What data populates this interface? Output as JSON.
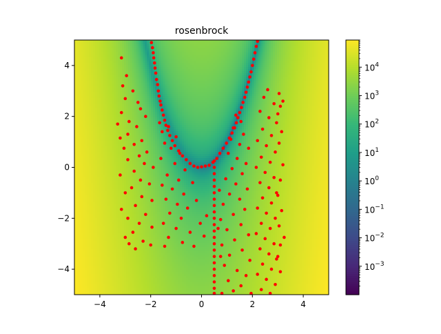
{
  "chart_data": {
    "type": "scatter",
    "title": "rosenbrock",
    "xlabel": "",
    "ylabel": "",
    "xlim": [
      -5,
      5
    ],
    "ylim": [
      -5,
      5
    ],
    "xticks": [
      -4,
      -2,
      0,
      2,
      4
    ],
    "yticks": [
      -4,
      -2,
      0,
      2,
      4
    ],
    "xtick_labels": [
      "−4",
      "−2",
      "0",
      "2",
      "4"
    ],
    "ytick_labels": [
      "−4",
      "−2",
      "0",
      "2",
      "4"
    ],
    "background": {
      "type": "heatmap",
      "function": "rosenbrock: (1 - x)^2 + 100 (y - x^2)^2",
      "colormap": "viridis",
      "color_scale": "log"
    },
    "colorbar": {
      "scale": "log",
      "range": [
        0.0001,
        90000
      ],
      "major_ticks": [
        0.001,
        0.01,
        0.1,
        1,
        10,
        100,
        1000,
        10000
      ],
      "base_labels": [
        "10",
        "10",
        "10",
        "10",
        "10",
        "10",
        "10",
        "10"
      ],
      "exponent_labels": [
        "−3",
        "−2",
        "−1",
        "0",
        "1",
        "2",
        "3",
        "4"
      ]
    },
    "series": [
      {
        "marker_color": "#ff0000",
        "points": [
          [
            -1.97,
            4.9
          ],
          [
            -1.93,
            4.7
          ],
          [
            -1.9,
            4.5
          ],
          [
            -1.88,
            4.3
          ],
          [
            -1.85,
            4.1
          ],
          [
            -1.83,
            3.9
          ],
          [
            -1.8,
            3.7
          ],
          [
            -1.77,
            3.45
          ],
          [
            -1.73,
            3.25
          ],
          [
            -1.7,
            3.0
          ],
          [
            -1.67,
            2.8
          ],
          [
            -1.63,
            2.6
          ],
          [
            -1.6,
            2.45
          ],
          [
            -1.55,
            2.25
          ],
          [
            -1.5,
            2.05
          ],
          [
            -1.45,
            1.85
          ],
          [
            -1.4,
            1.65
          ],
          [
            -1.33,
            1.45
          ],
          [
            -1.25,
            1.25
          ],
          [
            -1.15,
            1.05
          ],
          [
            -1.05,
            0.85
          ],
          [
            -0.9,
            0.65
          ],
          [
            -0.75,
            0.45
          ],
          [
            -0.6,
            0.3
          ],
          [
            -0.45,
            0.15
          ],
          [
            -0.3,
            0.05
          ],
          [
            -0.15,
            0.0
          ],
          [
            0.0,
            0.02
          ],
          [
            0.15,
            0.05
          ],
          [
            2.2,
            4.95
          ],
          [
            2.15,
            4.75
          ],
          [
            2.1,
            4.5
          ],
          [
            2.05,
            4.25
          ],
          [
            2.0,
            4.0
          ],
          [
            1.95,
            3.75
          ],
          [
            1.9,
            3.55
          ],
          [
            1.85,
            3.35
          ],
          [
            1.8,
            3.15
          ],
          [
            1.75,
            2.95
          ],
          [
            1.7,
            2.75
          ],
          [
            1.63,
            2.55
          ],
          [
            1.57,
            2.35
          ],
          [
            1.5,
            2.15
          ],
          [
            1.43,
            1.95
          ],
          [
            1.37,
            1.75
          ],
          [
            1.3,
            1.55
          ],
          [
            1.2,
            1.35
          ],
          [
            1.1,
            1.15
          ],
          [
            0.98,
            0.95
          ],
          [
            0.85,
            0.75
          ],
          [
            0.72,
            0.55
          ],
          [
            0.6,
            0.35
          ],
          [
            0.45,
            0.2
          ],
          [
            0.3,
            0.08
          ],
          [
            0.5,
            0.25
          ],
          [
            0.5,
            0.0
          ],
          [
            0.5,
            -0.25
          ],
          [
            0.5,
            -0.5
          ],
          [
            0.5,
            -0.75
          ],
          [
            0.5,
            -1.0
          ],
          [
            0.5,
            -1.25
          ],
          [
            0.5,
            -1.5
          ],
          [
            0.5,
            -1.75
          ],
          [
            0.5,
            -2.0
          ],
          [
            0.5,
            -2.25
          ],
          [
            0.5,
            -2.5
          ],
          [
            0.5,
            -2.75
          ],
          [
            0.5,
            -3.0
          ],
          [
            0.5,
            -3.25
          ],
          [
            0.5,
            -3.5
          ],
          [
            0.5,
            -3.75
          ],
          [
            0.5,
            -4.0
          ],
          [
            0.5,
            -4.25
          ],
          [
            0.5,
            -4.5
          ],
          [
            0.5,
            -4.75
          ],
          [
            0.5,
            -4.95
          ],
          [
            -3.15,
            4.3
          ],
          [
            -2.95,
            3.6
          ],
          [
            -3.1,
            3.2
          ],
          [
            -2.7,
            3.0
          ],
          [
            -3.0,
            2.7
          ],
          [
            -2.5,
            2.55
          ],
          [
            -2.4,
            2.3
          ],
          [
            -3.15,
            2.15
          ],
          [
            -2.2,
            2.0
          ],
          [
            -2.85,
            1.8
          ],
          [
            -3.3,
            1.7
          ],
          [
            -2.55,
            1.6
          ],
          [
            -2.9,
            1.3
          ],
          [
            -3.2,
            1.15
          ],
          [
            -2.35,
            1.05
          ],
          [
            -2.65,
            0.9
          ],
          [
            -3.05,
            0.75
          ],
          [
            -2.15,
            0.6
          ],
          [
            -2.45,
            0.45
          ],
          [
            -2.9,
            0.3
          ],
          [
            -2.25,
            0.15
          ],
          [
            -1.9,
            0.0
          ],
          [
            -2.65,
            -0.15
          ],
          [
            -3.2,
            -0.3
          ],
          [
            -2.4,
            -0.5
          ],
          [
            -2.05,
            -0.65
          ],
          [
            -2.75,
            -0.8
          ],
          [
            -3.0,
            -1.0
          ],
          [
            -2.35,
            -1.15
          ],
          [
            -1.95,
            -1.3
          ],
          [
            -2.6,
            -1.5
          ],
          [
            -3.15,
            -1.65
          ],
          [
            -2.2,
            -1.85
          ],
          [
            -2.9,
            -2.0
          ],
          [
            -2.45,
            -2.2
          ],
          [
            -1.95,
            -2.35
          ],
          [
            -2.7,
            -2.55
          ],
          [
            -3.0,
            -2.75
          ],
          [
            -2.3,
            -2.9
          ],
          [
            -2.0,
            -3.05
          ],
          [
            -2.6,
            -3.2
          ],
          [
            -2.85,
            -3.0
          ],
          [
            -1.65,
            1.75
          ],
          [
            -1.3,
            1.6
          ],
          [
            -1.55,
            1.4
          ],
          [
            -1.0,
            1.2
          ],
          [
            -1.45,
            0.95
          ],
          [
            -1.2,
            0.75
          ],
          [
            -0.85,
            0.55
          ],
          [
            -1.6,
            0.35
          ],
          [
            -1.05,
            0.15
          ],
          [
            -0.65,
            -0.1
          ],
          [
            -1.35,
            -0.3
          ],
          [
            -0.9,
            -0.5
          ],
          [
            -1.55,
            -0.7
          ],
          [
            -1.15,
            -0.85
          ],
          [
            -0.7,
            -1.05
          ],
          [
            -1.4,
            -1.25
          ],
          [
            -0.95,
            -1.45
          ],
          [
            -0.55,
            -1.6
          ],
          [
            -1.25,
            -1.8
          ],
          [
            -0.8,
            -2.0
          ],
          [
            -1.5,
            -2.2
          ],
          [
            -1.0,
            -2.4
          ],
          [
            -0.45,
            -2.55
          ],
          [
            -1.3,
            -2.75
          ],
          [
            -0.75,
            -2.95
          ],
          [
            -1.45,
            -3.1
          ],
          [
            -0.3,
            -3.1
          ],
          [
            -0.05,
            -2.2
          ],
          [
            -0.2,
            -1.3
          ],
          [
            0.1,
            -2.7
          ],
          [
            -0.35,
            -0.6
          ],
          [
            0.2,
            -1.9
          ],
          [
            1.35,
            2.05
          ],
          [
            1.55,
            1.8
          ],
          [
            1.25,
            1.55
          ],
          [
            1.65,
            1.3
          ],
          [
            1.15,
            1.1
          ],
          [
            1.5,
            0.9
          ],
          [
            1.85,
            0.75
          ],
          [
            1.05,
            0.55
          ],
          [
            1.4,
            0.35
          ],
          [
            1.75,
            0.15
          ],
          [
            1.2,
            -0.05
          ],
          [
            1.6,
            -0.25
          ],
          [
            0.95,
            -0.45
          ],
          [
            1.35,
            -0.65
          ],
          [
            1.8,
            -0.85
          ],
          [
            1.1,
            -1.05
          ],
          [
            1.5,
            -1.25
          ],
          [
            0.85,
            -1.45
          ],
          [
            1.7,
            -1.65
          ],
          [
            1.25,
            -1.85
          ],
          [
            0.75,
            -2.05
          ],
          [
            1.55,
            -2.25
          ],
          [
            1.0,
            -2.45
          ],
          [
            1.85,
            -2.65
          ],
          [
            1.3,
            -2.85
          ],
          [
            0.8,
            -3.05
          ],
          [
            1.6,
            -3.25
          ],
          [
            1.1,
            -3.45
          ],
          [
            1.9,
            -3.65
          ],
          [
            0.9,
            -3.85
          ],
          [
            1.4,
            -4.05
          ],
          [
            1.75,
            -4.25
          ],
          [
            1.05,
            -4.45
          ],
          [
            1.55,
            -4.65
          ],
          [
            1.25,
            -4.85
          ],
          [
            0.8,
            -4.95
          ],
          [
            1.95,
            -4.95
          ],
          [
            0.7,
            -0.9
          ],
          [
            0.65,
            -2.4
          ],
          [
            0.75,
            -3.5
          ],
          [
            2.6,
            3.05
          ],
          [
            2.45,
            2.75
          ],
          [
            2.85,
            2.5
          ],
          [
            2.3,
            2.2
          ],
          [
            2.65,
            1.95
          ],
          [
            2.95,
            1.75
          ],
          [
            2.4,
            1.5
          ],
          [
            2.75,
            1.25
          ],
          [
            2.2,
            1.05
          ],
          [
            2.55,
            0.85
          ],
          [
            2.9,
            0.6
          ],
          [
            2.35,
            0.4
          ],
          [
            2.7,
            0.2
          ],
          [
            2.15,
            0.0
          ],
          [
            2.5,
            -0.2
          ],
          [
            2.85,
            -0.4
          ],
          [
            2.3,
            -0.6
          ],
          [
            2.65,
            -0.8
          ],
          [
            2.95,
            -1.0
          ],
          [
            2.4,
            -1.2
          ],
          [
            2.75,
            -1.4
          ],
          [
            2.2,
            -1.6
          ],
          [
            2.55,
            -1.8
          ],
          [
            2.9,
            -2.0
          ],
          [
            2.35,
            -2.2
          ],
          [
            2.7,
            -2.4
          ],
          [
            2.15,
            -2.6
          ],
          [
            2.5,
            -2.8
          ],
          [
            2.85,
            -3.0
          ],
          [
            2.3,
            -3.2
          ],
          [
            2.65,
            -3.4
          ],
          [
            2.95,
            -3.6
          ],
          [
            2.4,
            -3.8
          ],
          [
            2.75,
            -4.0
          ],
          [
            2.2,
            -4.2
          ],
          [
            2.55,
            -4.4
          ],
          [
            2.9,
            -4.6
          ],
          [
            2.35,
            -4.8
          ],
          [
            2.7,
            -4.95
          ],
          [
            3.05,
            2.9
          ],
          [
            3.2,
            2.6
          ],
          [
            3.1,
            2.4
          ],
          [
            3.0,
            2.1
          ],
          [
            3.15,
            1.4
          ],
          [
            3.05,
            0.95
          ],
          [
            3.2,
            0.1
          ],
          [
            3.1,
            -0.5
          ],
          [
            3.0,
            -1.1
          ],
          [
            3.15,
            -1.7
          ],
          [
            3.05,
            -2.3
          ],
          [
            3.25,
            -2.75
          ],
          [
            3.1,
            -3.05
          ],
          [
            3.0,
            -3.5
          ],
          [
            3.1,
            -4.1
          ]
        ]
      }
    ]
  }
}
